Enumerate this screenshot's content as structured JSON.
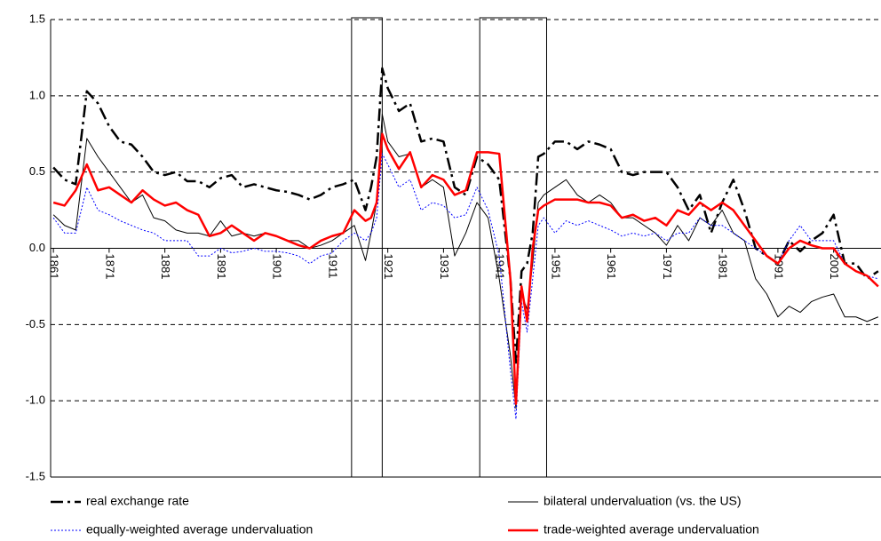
{
  "chart_data": {
    "type": "line",
    "x": [
      1861,
      1863,
      1865,
      1867,
      1869,
      1871,
      1873,
      1875,
      1877,
      1879,
      1881,
      1883,
      1885,
      1887,
      1889,
      1891,
      1893,
      1895,
      1897,
      1899,
      1901,
      1903,
      1905,
      1907,
      1909,
      1911,
      1913,
      1915,
      1917,
      1918,
      1919,
      1920,
      1921,
      1923,
      1925,
      1927,
      1929,
      1931,
      1933,
      1935,
      1937,
      1939,
      1941,
      1943,
      1944,
      1945,
      1946,
      1947,
      1948,
      1949,
      1951,
      1953,
      1955,
      1957,
      1959,
      1961,
      1963,
      1965,
      1967,
      1969,
      1971,
      1973,
      1975,
      1977,
      1979,
      1981,
      1983,
      1985,
      1987,
      1989,
      1991,
      1993,
      1995,
      1997,
      1999,
      2001,
      2003,
      2005,
      2007,
      2009
    ],
    "series": [
      {
        "name": "real exchange rate",
        "color": "#000000",
        "width": 2.5,
        "dash": "14,5,3,5",
        "values": [
          0.53,
          0.45,
          0.42,
          1.03,
          0.95,
          0.8,
          0.7,
          0.68,
          0.6,
          0.5,
          0.48,
          0.5,
          0.44,
          0.44,
          0.4,
          0.46,
          0.48,
          0.4,
          0.42,
          0.4,
          0.38,
          0.37,
          0.35,
          0.32,
          0.35,
          0.4,
          0.42,
          0.45,
          0.25,
          0.4,
          0.6,
          1.18,
          1.05,
          0.9,
          0.95,
          0.7,
          0.72,
          0.7,
          0.4,
          0.35,
          0.6,
          0.55,
          0.45,
          -0.2,
          -0.75,
          -0.15,
          -0.1,
          0.1,
          0.6,
          0.62,
          0.7,
          0.7,
          0.65,
          0.7,
          0.68,
          0.65,
          0.5,
          0.48,
          0.5,
          0.5,
          0.5,
          0.4,
          0.25,
          0.35,
          0.1,
          0.3,
          0.45,
          0.25,
          0.0,
          -0.05,
          -0.1,
          0.05,
          -0.02,
          0.05,
          0.1,
          0.22,
          -0.1,
          -0.1,
          -0.2,
          -0.15
        ]
      },
      {
        "name": "bilateral undervaluation (vs. the US)",
        "color": "#000000",
        "width": 1,
        "dash": "none",
        "values": [
          0.22,
          0.15,
          0.12,
          0.72,
          0.6,
          0.5,
          0.4,
          0.3,
          0.35,
          0.2,
          0.18,
          0.12,
          0.1,
          0.1,
          0.08,
          0.18,
          0.08,
          0.1,
          0.08,
          0.1,
          0.08,
          0.05,
          0.05,
          0.0,
          0.02,
          0.05,
          0.1,
          0.15,
          -0.08,
          0.1,
          0.3,
          0.88,
          0.7,
          0.6,
          0.62,
          0.4,
          0.45,
          0.4,
          -0.05,
          0.1,
          0.3,
          0.2,
          -0.2,
          -0.7,
          -1.05,
          -0.3,
          -0.4,
          -0.1,
          0.3,
          0.35,
          0.4,
          0.45,
          0.35,
          0.3,
          0.35,
          0.3,
          0.2,
          0.2,
          0.15,
          0.1,
          0.02,
          0.15,
          0.05,
          0.2,
          0.15,
          0.25,
          0.1,
          0.05,
          -0.2,
          -0.3,
          -0.45,
          -0.38,
          -0.42,
          -0.35,
          -0.32,
          -0.3,
          -0.45,
          -0.45,
          -0.48,
          -0.45
        ]
      },
      {
        "name": "equally-weighted average undervaluation",
        "color": "#0000ff",
        "width": 1,
        "dash": "2,2",
        "values": [
          0.2,
          0.1,
          0.1,
          0.4,
          0.25,
          0.22,
          0.18,
          0.15,
          0.12,
          0.1,
          0.05,
          0.05,
          0.05,
          -0.05,
          -0.05,
          0.0,
          -0.03,
          -0.02,
          0.0,
          -0.02,
          -0.02,
          -0.03,
          -0.05,
          -0.1,
          -0.05,
          -0.03,
          0.05,
          0.1,
          0.05,
          0.1,
          0.2,
          0.62,
          0.55,
          0.4,
          0.45,
          0.25,
          0.3,
          0.28,
          0.2,
          0.22,
          0.4,
          0.25,
          -0.05,
          -0.8,
          -1.12,
          -0.35,
          -0.55,
          -0.2,
          0.15,
          0.2,
          0.1,
          0.18,
          0.15,
          0.18,
          0.15,
          0.12,
          0.08,
          0.1,
          0.08,
          0.1,
          0.05,
          0.1,
          0.1,
          0.2,
          0.15,
          0.15,
          0.1,
          0.05,
          0.0,
          -0.05,
          -0.1,
          0.05,
          0.15,
          0.05,
          0.05,
          0.05,
          -0.1,
          -0.15,
          -0.18,
          -0.2
        ]
      },
      {
        "name": "trade-weighted average undervaluation",
        "color": "#ff0000",
        "width": 2.5,
        "dash": "none",
        "values": [
          0.3,
          0.28,
          0.38,
          0.55,
          0.38,
          0.4,
          0.35,
          0.3,
          0.38,
          0.32,
          0.28,
          0.3,
          0.25,
          0.22,
          0.08,
          0.1,
          0.15,
          0.1,
          0.05,
          0.1,
          0.08,
          0.05,
          0.02,
          0.0,
          0.05,
          0.08,
          0.1,
          0.25,
          0.18,
          0.2,
          0.3,
          0.75,
          0.65,
          0.52,
          0.63,
          0.4,
          0.48,
          0.45,
          0.35,
          0.38,
          0.63,
          0.63,
          0.62,
          -0.2,
          -1.02,
          -0.25,
          -0.48,
          0.0,
          0.25,
          0.28,
          0.32,
          0.32,
          0.32,
          0.3,
          0.3,
          0.28,
          0.2,
          0.22,
          0.18,
          0.2,
          0.15,
          0.25,
          0.22,
          0.3,
          0.25,
          0.3,
          0.25,
          0.15,
          0.05,
          -0.05,
          -0.1,
          0.0,
          0.05,
          0.02,
          0.0,
          0.0,
          -0.1,
          -0.15,
          -0.18,
          -0.25
        ]
      }
    ],
    "xlim": [
      1860.5,
      2009.5
    ],
    "xticks": [
      1861,
      1871,
      1881,
      1891,
      1901,
      1911,
      1921,
      1931,
      1941,
      1951,
      1961,
      1971,
      1981,
      1991,
      2001
    ],
    "ylim": [
      -1.5,
      1.5
    ],
    "yticks": [
      -1.5,
      {
        "value": -1.0,
        "label": "-1.0"
      },
      -0.5,
      {
        "value": 0.0,
        "label": "0.0"
      },
      0.5,
      {
        "value": 1.0,
        "label": "1.0"
      },
      1.5
    ],
    "grid": true,
    "highlight_ranges": [
      [
        1914.5,
        1920
      ],
      [
        1937.5,
        1949.5
      ]
    ]
  }
}
